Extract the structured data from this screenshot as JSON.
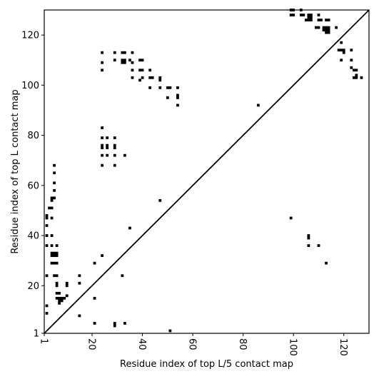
{
  "chart_data": {
    "type": "scatter",
    "xlabel": "Residue index of top L/5 contact map",
    "ylabel": "Residue index of top L contact map",
    "xlim": [
      1,
      130
    ],
    "ylim": [
      1,
      130
    ],
    "xticks": [
      1,
      20,
      40,
      60,
      80,
      100,
      120
    ],
    "yticks": [
      1,
      20,
      40,
      60,
      80,
      100,
      120
    ],
    "x_tick_labels_rotated": true,
    "grid": false,
    "diagonal": true,
    "colors": {
      "points": "#000000",
      "diagonal": "#000000",
      "frame": "#000000"
    },
    "upper_triangle_points": [
      [
        99,
        130
      ],
      [
        100,
        130
      ],
      [
        103,
        130
      ],
      [
        99,
        128
      ],
      [
        100,
        128
      ],
      [
        103,
        128
      ],
      [
        104,
        128
      ],
      [
        106,
        128
      ],
      [
        107,
        128
      ],
      [
        106,
        127
      ],
      [
        107,
        127
      ],
      [
        110,
        128
      ],
      [
        105,
        126
      ],
      [
        106,
        126
      ],
      [
        107,
        126
      ],
      [
        110,
        126
      ],
      [
        111,
        126
      ],
      [
        113,
        126
      ],
      [
        114,
        126
      ],
      [
        109,
        123
      ],
      [
        110,
        123
      ],
      [
        112,
        123
      ],
      [
        113,
        123
      ],
      [
        114,
        123
      ],
      [
        117,
        123
      ],
      [
        112,
        122
      ],
      [
        113,
        122
      ],
      [
        114,
        122
      ],
      [
        113,
        121
      ],
      [
        114,
        121
      ],
      [
        119,
        117
      ],
      [
        118,
        114
      ],
      [
        119,
        114
      ],
      [
        120,
        114
      ],
      [
        123,
        114
      ],
      [
        120,
        113
      ],
      [
        119,
        110
      ],
      [
        123,
        110
      ],
      [
        123,
        107
      ],
      [
        124,
        106
      ],
      [
        125,
        106
      ],
      [
        125,
        104
      ],
      [
        124,
        103
      ],
      [
        125,
        103
      ],
      [
        127,
        103
      ],
      [
        24,
        113
      ],
      [
        29,
        113
      ],
      [
        32,
        113
      ],
      [
        33,
        113
      ],
      [
        36,
        113
      ],
      [
        29,
        110
      ],
      [
        32,
        110
      ],
      [
        33,
        110
      ],
      [
        35,
        110
      ],
      [
        39,
        110
      ],
      [
        40,
        110
      ],
      [
        32,
        109
      ],
      [
        33,
        109
      ],
      [
        36,
        109
      ],
      [
        24,
        109
      ],
      [
        24,
        106
      ],
      [
        36,
        106
      ],
      [
        39,
        106
      ],
      [
        40,
        106
      ],
      [
        43,
        106
      ],
      [
        36,
        103
      ],
      [
        39,
        102
      ],
      [
        40,
        103
      ],
      [
        43,
        103
      ],
      [
        44,
        103
      ],
      [
        47,
        103
      ],
      [
        47,
        102
      ],
      [
        43,
        99
      ],
      [
        47,
        99
      ],
      [
        50,
        99
      ],
      [
        51,
        99
      ],
      [
        54,
        99
      ],
      [
        50,
        95
      ],
      [
        54,
        96
      ],
      [
        54,
        95
      ],
      [
        54,
        92
      ],
      [
        86,
        92
      ],
      [
        24,
        83
      ],
      [
        24,
        79
      ],
      [
        26,
        79
      ],
      [
        29,
        79
      ],
      [
        24,
        76
      ],
      [
        24,
        75
      ],
      [
        26,
        76
      ],
      [
        26,
        75
      ],
      [
        29,
        76
      ],
      [
        29,
        75
      ],
      [
        24,
        72
      ],
      [
        26,
        72
      ],
      [
        29,
        72
      ],
      [
        33,
        72
      ],
      [
        24,
        68
      ],
      [
        29,
        68
      ]
    ],
    "lower_triangle_points": [
      [
        5,
        68
      ],
      [
        5,
        65
      ],
      [
        5,
        61
      ],
      [
        5,
        58
      ],
      [
        4,
        55
      ],
      [
        5,
        55
      ],
      [
        4,
        54
      ],
      [
        3,
        51
      ],
      [
        4,
        51
      ],
      [
        2,
        48
      ],
      [
        2,
        47
      ],
      [
        4,
        47
      ],
      [
        2,
        44
      ],
      [
        4,
        40
      ],
      [
        2,
        40
      ],
      [
        2,
        36
      ],
      [
        4,
        36
      ],
      [
        6,
        36
      ],
      [
        4,
        33
      ],
      [
        5,
        33
      ],
      [
        6,
        33
      ],
      [
        4,
        32
      ],
      [
        5,
        32
      ],
      [
        6,
        32
      ],
      [
        4,
        29
      ],
      [
        5,
        29
      ],
      [
        6,
        29
      ],
      [
        2,
        24
      ],
      [
        5,
        24
      ],
      [
        6,
        24
      ],
      [
        6,
        21
      ],
      [
        6,
        20
      ],
      [
        6,
        17
      ],
      [
        7,
        17
      ],
      [
        6,
        15
      ],
      [
        7,
        15
      ],
      [
        8,
        15
      ],
      [
        9,
        15
      ],
      [
        10,
        16
      ],
      [
        10,
        21
      ],
      [
        10,
        20
      ],
      [
        7,
        14
      ],
      [
        8,
        14
      ],
      [
        7,
        13
      ],
      [
        2,
        12
      ],
      [
        2,
        9
      ],
      [
        15,
        24
      ],
      [
        15,
        21
      ],
      [
        21,
        29
      ],
      [
        24,
        32
      ],
      [
        21,
        15
      ],
      [
        15,
        8
      ],
      [
        21,
        5
      ],
      [
        29,
        4
      ],
      [
        29,
        5
      ],
      [
        33,
        5
      ],
      [
        32,
        24
      ],
      [
        35,
        43
      ],
      [
        47,
        54
      ],
      [
        51,
        2
      ],
      [
        99,
        47
      ],
      [
        106,
        40
      ],
      [
        106,
        39
      ],
      [
        106,
        36
      ],
      [
        110,
        36
      ],
      [
        113,
        29
      ]
    ]
  }
}
